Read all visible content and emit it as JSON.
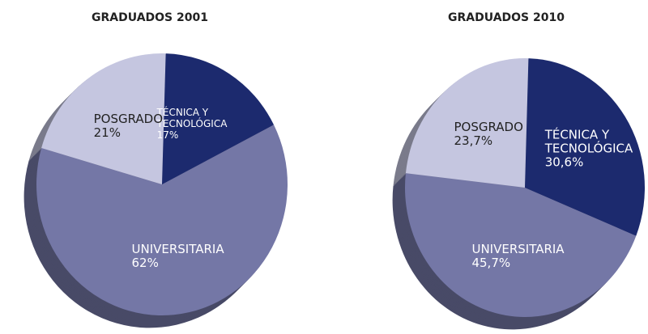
{
  "chart_data": [
    {
      "type": "pie",
      "title": "GRADUADOS 2001",
      "categories": [
        "TÉCNICA Y TECNOLÓGICA",
        "UNIVERSITARIA",
        "POSGRADO"
      ],
      "values": [
        17,
        62,
        21
      ],
      "value_labels": [
        "17%",
        "62%",
        "21%"
      ],
      "colors": [
        "#1c2a6e",
        "#7477a6",
        "#c5c6e0"
      ]
    },
    {
      "type": "pie",
      "title": "GRADUADOS 2010",
      "categories": [
        "TÉCNICA Y TECNOLÓGICA",
        "UNIVERSITARIA",
        "POSGRADO"
      ],
      "values": [
        30.6,
        45.7,
        23.7
      ],
      "value_labels": [
        "30,6%",
        "45,7%",
        "23,7%"
      ],
      "colors": [
        "#1c2a6e",
        "#7477a6",
        "#c5c6e0"
      ]
    }
  ]
}
